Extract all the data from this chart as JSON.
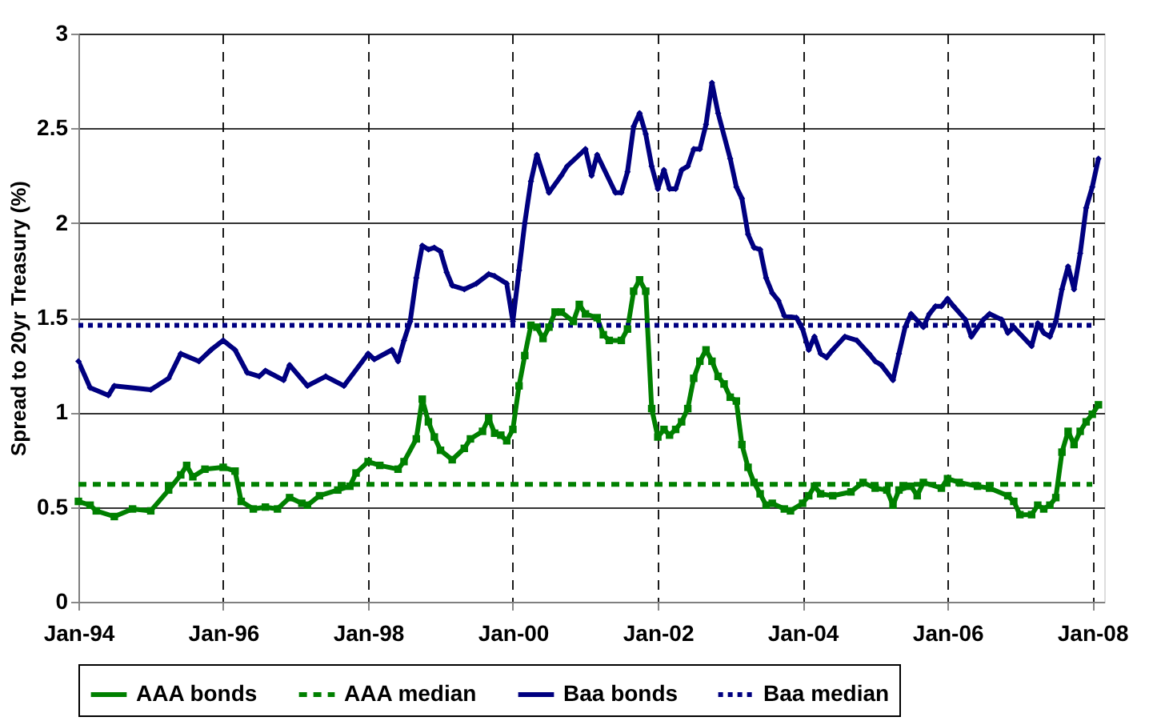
{
  "chart_data": {
    "type": "line",
    "ylabel": "Spread to 20yr Treasury (%)",
    "xlim": [
      "1994-01",
      "2008-03"
    ],
    "xticks": [
      {
        "value": "1994-01",
        "label": "Jan-94"
      },
      {
        "value": "1996-01",
        "label": "Jan-96"
      },
      {
        "value": "1998-01",
        "label": "Jan-98"
      },
      {
        "value": "2000-01",
        "label": "Jan-00"
      },
      {
        "value": "2002-01",
        "label": "Jan-02"
      },
      {
        "value": "2004-01",
        "label": "Jan-04"
      },
      {
        "value": "2006-01",
        "label": "Jan-06"
      },
      {
        "value": "2008-01",
        "label": "Jan-08"
      }
    ],
    "ylim": [
      0,
      3
    ],
    "yticks": [
      0,
      0.5,
      1,
      1.5,
      2,
      2.5,
      3
    ],
    "grid": true,
    "legend": "bottom",
    "series": [
      {
        "name": "AAA bonds",
        "color": "#008000",
        "marker": "square",
        "line_style": "solid",
        "x": [
          "1994-01",
          "1994-03",
          "1994-04",
          "1994-07",
          "1994-10",
          "1995-01",
          "1995-04",
          "1995-06",
          "1995-07",
          "1995-08",
          "1995-10",
          "1996-01",
          "1996-03",
          "1996-04",
          "1996-06",
          "1996-08",
          "1996-10",
          "1996-12",
          "1997-02",
          "1997-03",
          "1997-05",
          "1997-08",
          "1997-10",
          "1997-11",
          "1998-01",
          "1998-03",
          "1998-06",
          "1998-07",
          "1998-09",
          "1998-10",
          "1998-11",
          "1998-12",
          "1999-01",
          "1999-03",
          "1999-05",
          "1999-06",
          "1999-08",
          "1999-09",
          "1999-10",
          "1999-11",
          "1999-12",
          "2000-01",
          "2000-02",
          "2000-03",
          "2000-04",
          "2000-05",
          "2000-06",
          "2000-07",
          "2000-08",
          "2000-09",
          "2000-11",
          "2000-12",
          "2001-01",
          "2001-03",
          "2001-04",
          "2001-05",
          "2001-07",
          "2001-08",
          "2001-09",
          "2001-10",
          "2001-11",
          "2001-12",
          "2002-01",
          "2002-02",
          "2002-03",
          "2002-04",
          "2002-05",
          "2002-06",
          "2002-07",
          "2002-08",
          "2002-09",
          "2002-10",
          "2002-11",
          "2002-12",
          "2003-01",
          "2003-02",
          "2003-03",
          "2003-04",
          "2003-05",
          "2003-06",
          "2003-07",
          "2003-08",
          "2003-10",
          "2003-11",
          "2004-01",
          "2004-02",
          "2004-03",
          "2004-04",
          "2004-06",
          "2004-09",
          "2004-11",
          "2005-01",
          "2005-03",
          "2005-04",
          "2005-05",
          "2005-07",
          "2005-08",
          "2005-09",
          "2005-12",
          "2006-01",
          "2006-03",
          "2006-06",
          "2006-08",
          "2006-11",
          "2006-12",
          "2007-01",
          "2007-03",
          "2007-04",
          "2007-05",
          "2007-06",
          "2007-07",
          "2007-08",
          "2007-09",
          "2007-10",
          "2007-11",
          "2007-12",
          "2008-01",
          "2008-02"
        ],
        "values": [
          0.53,
          0.51,
          0.48,
          0.45,
          0.49,
          0.48,
          0.59,
          0.67,
          0.72,
          0.66,
          0.7,
          0.71,
          0.69,
          0.53,
          0.49,
          0.5,
          0.49,
          0.55,
          0.52,
          0.51,
          0.56,
          0.59,
          0.61,
          0.68,
          0.74,
          0.72,
          0.7,
          0.74,
          0.86,
          1.07,
          0.95,
          0.87,
          0.8,
          0.75,
          0.81,
          0.86,
          0.9,
          0.97,
          0.89,
          0.88,
          0.85,
          0.91,
          1.14,
          1.3,
          1.46,
          1.45,
          1.39,
          1.45,
          1.53,
          1.53,
          1.48,
          1.57,
          1.52,
          1.5,
          1.41,
          1.38,
          1.38,
          1.44,
          1.64,
          1.7,
          1.64,
          1.02,
          0.87,
          0.91,
          0.88,
          0.91,
          0.95,
          1.02,
          1.18,
          1.27,
          1.33,
          1.27,
          1.19,
          1.15,
          1.08,
          1.06,
          0.83,
          0.71,
          0.63,
          0.57,
          0.51,
          0.52,
          0.49,
          0.48,
          0.52,
          0.56,
          0.61,
          0.57,
          0.56,
          0.58,
          0.63,
          0.6,
          0.59,
          0.51,
          0.59,
          0.61,
          0.56,
          0.63,
          0.6,
          0.65,
          0.63,
          0.61,
          0.6,
          0.56,
          0.53,
          0.46,
          0.46,
          0.51,
          0.49,
          0.51,
          0.55,
          0.79,
          0.9,
          0.83,
          0.9,
          0.95,
          0.99,
          1.04
        ]
      },
      {
        "name": "AAA median",
        "color": "#008000",
        "marker": "none",
        "line_style": "dashed",
        "x": [
          "1994-01",
          "2008-01"
        ],
        "values": [
          0.62,
          0.62
        ]
      },
      {
        "name": "Baa bonds",
        "color": "#000080",
        "marker": "diamond",
        "line_style": "solid",
        "x": [
          "1994-01",
          "1994-03",
          "1994-06",
          "1994-07",
          "1995-01",
          "1995-04",
          "1995-06",
          "1995-09",
          "1995-11",
          "1996-01",
          "1996-03",
          "1996-05",
          "1996-07",
          "1996-08",
          "1996-11",
          "1996-12",
          "1997-03",
          "1997-06",
          "1997-09",
          "1998-01",
          "1998-02",
          "1998-05",
          "1998-06",
          "1998-07",
          "1998-08",
          "1998-09",
          "1998-10",
          "1998-11",
          "1998-12",
          "1999-01",
          "1999-02",
          "1999-03",
          "1999-05",
          "1999-07",
          "1999-09",
          "1999-10",
          "1999-12",
          "2000-01",
          "2000-02",
          "2000-03",
          "2000-04",
          "2000-05",
          "2000-07",
          "2000-09",
          "2000-10",
          "2001-01",
          "2001-02",
          "2001-03",
          "2001-06",
          "2001-07",
          "2001-08",
          "2001-09",
          "2001-10",
          "2001-11",
          "2001-12",
          "2002-01",
          "2002-02",
          "2002-03",
          "2002-04",
          "2002-05",
          "2002-06",
          "2002-07",
          "2002-08",
          "2002-09",
          "2002-10",
          "2002-11",
          "2003-01",
          "2003-02",
          "2003-03",
          "2003-04",
          "2003-05",
          "2003-06",
          "2003-07",
          "2003-08",
          "2003-09",
          "2003-10",
          "2003-12",
          "2004-01",
          "2004-02",
          "2004-03",
          "2004-04",
          "2004-05",
          "2004-06",
          "2004-08",
          "2004-10",
          "2004-12",
          "2005-01",
          "2005-02",
          "2005-04",
          "2005-05",
          "2005-06",
          "2005-07",
          "2005-09",
          "2005-10",
          "2005-11",
          "2005-12",
          "2006-01",
          "2006-02",
          "2006-04",
          "2006-05",
          "2006-07",
          "2006-08",
          "2006-10",
          "2006-11",
          "2006-12",
          "2007-03",
          "2007-04",
          "2007-05",
          "2007-06",
          "2007-07",
          "2007-08",
          "2007-09",
          "2007-10",
          "2007-11",
          "2007-12",
          "2008-01",
          "2008-02"
        ],
        "values": [
          1.27,
          1.13,
          1.09,
          1.14,
          1.12,
          1.18,
          1.31,
          1.27,
          1.33,
          1.38,
          1.33,
          1.21,
          1.19,
          1.22,
          1.17,
          1.25,
          1.14,
          1.19,
          1.14,
          1.31,
          1.28,
          1.33,
          1.27,
          1.38,
          1.48,
          1.71,
          1.88,
          1.86,
          1.87,
          1.85,
          1.74,
          1.67,
          1.65,
          1.68,
          1.73,
          1.72,
          1.68,
          1.48,
          1.75,
          2.0,
          2.22,
          2.36,
          2.16,
          2.25,
          2.3,
          2.39,
          2.25,
          2.36,
          2.16,
          2.16,
          2.27,
          2.51,
          2.58,
          2.47,
          2.3,
          2.18,
          2.28,
          2.18,
          2.18,
          2.28,
          2.3,
          2.39,
          2.39,
          2.52,
          2.74,
          2.58,
          2.34,
          2.19,
          2.13,
          1.94,
          1.87,
          1.86,
          1.71,
          1.63,
          1.59,
          1.51,
          1.5,
          1.44,
          1.33,
          1.4,
          1.31,
          1.29,
          1.33,
          1.4,
          1.38,
          1.31,
          1.27,
          1.25,
          1.17,
          1.31,
          1.45,
          1.52,
          1.45,
          1.52,
          1.56,
          1.56,
          1.6,
          1.56,
          1.49,
          1.4,
          1.49,
          1.52,
          1.49,
          1.42,
          1.45,
          1.35,
          1.47,
          1.42,
          1.4,
          1.48,
          1.65,
          1.77,
          1.65,
          1.84,
          2.08,
          2.19,
          2.34
        ]
      },
      {
        "name": "Baa median",
        "color": "#000080",
        "marker": "none",
        "line_style": "dotted",
        "x": [
          "1994-01",
          "2008-01"
        ],
        "values": [
          1.46,
          1.46
        ]
      }
    ]
  }
}
